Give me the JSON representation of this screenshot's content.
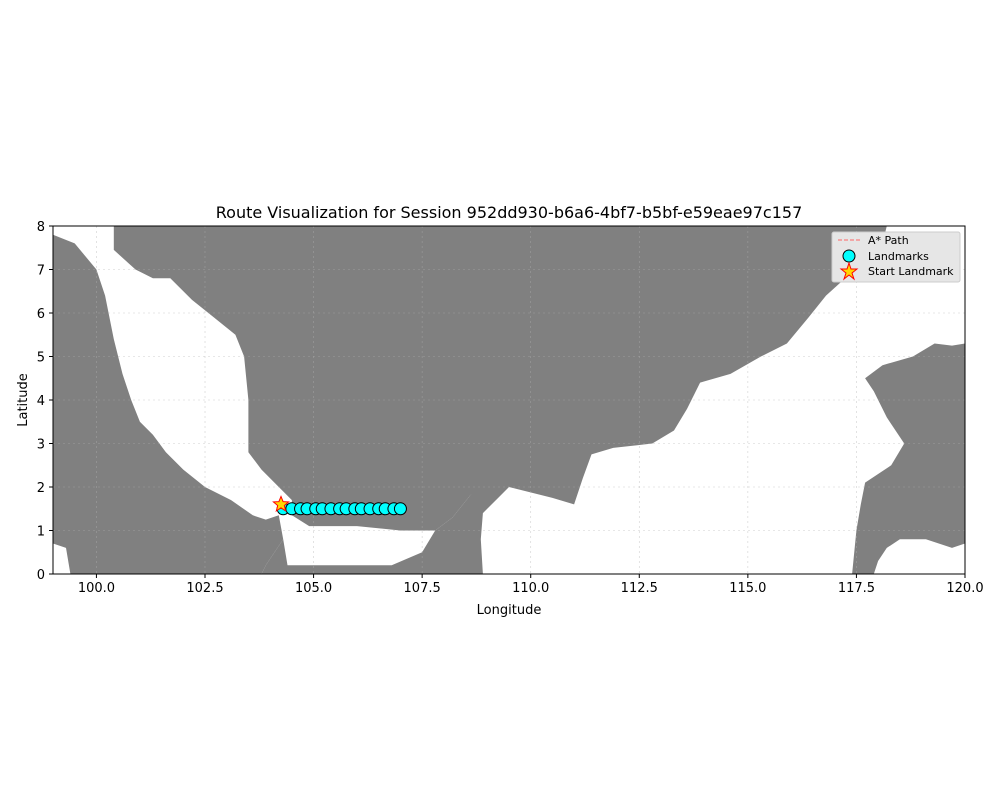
{
  "chart_data": {
    "type": "scatter",
    "title": "Route Visualization for Session 952dd930-b6a6-4bf7-b5bf-e59eae97c157",
    "xlabel": "Longitude",
    "ylabel": "Latitude",
    "xlim": [
      99,
      120
    ],
    "ylim": [
      0,
      8
    ],
    "grid": true,
    "x_ticks": [
      "100.0",
      "102.5",
      "105.0",
      "107.5",
      "110.0",
      "112.5",
      "115.0",
      "117.5",
      "120.0"
    ],
    "x_tick_values": [
      100,
      102.5,
      105,
      107.5,
      110,
      112.5,
      115,
      117.5,
      120
    ],
    "y_ticks": [
      "0",
      "1",
      "2",
      "3",
      "4",
      "5",
      "6",
      "7",
      "8"
    ],
    "y_tick_values": [
      0,
      1,
      2,
      3,
      4,
      5,
      6,
      7,
      8
    ],
    "legend_position": "top-right",
    "legend": [
      {
        "label": "A* Path",
        "marker": "dashed-line",
        "color": "#ff6666"
      },
      {
        "label": "Landmarks",
        "marker": "circle",
        "color": "#00ffff"
      },
      {
        "label": "Start Landmark",
        "marker": "star",
        "color": "#ffd700"
      }
    ],
    "colors": {
      "land": "#808080",
      "water": "#ffffff",
      "landmark": "#00ffff",
      "start": "#ffd700",
      "start_edge": "#ff0000",
      "path": "#ff6666"
    },
    "landmarks": {
      "x": [
        104.3,
        104.5,
        104.7,
        104.85,
        105.05,
        105.2,
        105.4,
        105.6,
        105.75,
        105.95,
        106.1,
        106.3,
        106.5,
        106.65,
        106.85,
        107.0
      ],
      "y": [
        1.5,
        1.5,
        1.5,
        1.5,
        1.5,
        1.5,
        1.5,
        1.5,
        1.5,
        1.5,
        1.5,
        1.5,
        1.5,
        1.5,
        1.5,
        1.5
      ]
    },
    "start_landmark": {
      "x": 104.25,
      "y": 1.6
    },
    "map_polygons": {
      "land": [
        [
          [
            99,
            7.8
          ],
          [
            99.5,
            7.6
          ],
          [
            100,
            7
          ],
          [
            100.2,
            6.4
          ],
          [
            100.4,
            5.4
          ],
          [
            100.6,
            4.6
          ],
          [
            100.8,
            4.0
          ],
          [
            101.0,
            3.5
          ],
          [
            101.3,
            3.2
          ],
          [
            101.6,
            2.8
          ],
          [
            102.0,
            2.4
          ],
          [
            102.5,
            2.0
          ],
          [
            103.1,
            1.7
          ],
          [
            103.6,
            1.35
          ],
          [
            103.9,
            1.25
          ],
          [
            104.2,
            1.35
          ],
          [
            104.3,
            0.8
          ],
          [
            104.1,
            0.5
          ],
          [
            103.9,
            0.2
          ],
          [
            103.8,
            0
          ],
          [
            99.4,
            0
          ],
          [
            99.3,
            0.6
          ],
          [
            99.0,
            0.7
          ]
        ],
        [
          [
            100.4,
            8
          ],
          [
            100.4,
            7.45
          ],
          [
            100.9,
            7.0
          ],
          [
            101.3,
            6.8
          ],
          [
            101.7,
            6.8
          ],
          [
            102.2,
            6.3
          ],
          [
            102.7,
            5.9
          ],
          [
            103.2,
            5.5
          ],
          [
            103.4,
            5.0
          ],
          [
            103.5,
            4.0
          ],
          [
            103.5,
            2.8
          ],
          [
            103.8,
            2.4
          ],
          [
            104.2,
            2.0
          ],
          [
            104.5,
            1.7
          ],
          [
            104.5,
            1.35
          ],
          [
            104.9,
            1.1
          ],
          [
            106,
            1.1
          ],
          [
            107,
            1.0
          ],
          [
            107.8,
            1.0
          ],
          [
            108.2,
            1.3
          ],
          [
            108.6,
            1.8
          ],
          [
            109.0,
            2.2
          ],
          [
            109.5,
            2.0
          ],
          [
            110.5,
            1.75
          ],
          [
            111.0,
            1.6
          ],
          [
            111.2,
            2.2
          ],
          [
            111.4,
            2.75
          ],
          [
            111.9,
            2.9
          ],
          [
            112.8,
            3.0
          ],
          [
            113.3,
            3.3
          ],
          [
            113.6,
            3.8
          ],
          [
            113.9,
            4.4
          ],
          [
            114.6,
            4.6
          ],
          [
            115.3,
            5.0
          ],
          [
            115.9,
            5.3
          ],
          [
            116.4,
            5.9
          ],
          [
            116.8,
            6.4
          ],
          [
            117.3,
            6.85
          ],
          [
            117.7,
            7.0
          ],
          [
            118.0,
            7.2
          ],
          [
            118.2,
            8
          ]
        ],
        [
          [
            117.4,
            0
          ],
          [
            117.5,
            1.0
          ],
          [
            117.6,
            1.6
          ],
          [
            117.7,
            2.1
          ],
          [
            118.3,
            2.5
          ],
          [
            118.6,
            3.0
          ],
          [
            118.2,
            3.6
          ],
          [
            117.9,
            4.2
          ],
          [
            117.7,
            4.5
          ],
          [
            118.1,
            4.8
          ],
          [
            118.8,
            5.0
          ],
          [
            119.3,
            5.3
          ],
          [
            119.7,
            5.25
          ],
          [
            120,
            5.3
          ],
          [
            120,
            0.7
          ],
          [
            119.7,
            0.6
          ],
          [
            119.1,
            0.8
          ],
          [
            118.5,
            0.8
          ],
          [
            118.2,
            0.6
          ],
          [
            118.0,
            0.3
          ],
          [
            117.9,
            0
          ]
        ],
        [
          [
            108.9,
            0
          ],
          [
            108.85,
            0.8
          ],
          [
            108.9,
            1.4
          ],
          [
            109.3,
            1.8
          ],
          [
            109.5,
            2.0
          ],
          [
            109.0,
            2.3
          ],
          [
            108.6,
            1.8
          ],
          [
            108.2,
            1.3
          ],
          [
            107.8,
            1.0
          ],
          [
            107.5,
            0.5
          ],
          [
            106.8,
            0.2
          ],
          [
            104.4,
            0.2
          ],
          [
            104.3,
            0.8
          ],
          [
            104.1,
            0.5
          ],
          [
            103.9,
            0.2
          ],
          [
            103.8,
            0
          ]
        ]
      ]
    }
  }
}
